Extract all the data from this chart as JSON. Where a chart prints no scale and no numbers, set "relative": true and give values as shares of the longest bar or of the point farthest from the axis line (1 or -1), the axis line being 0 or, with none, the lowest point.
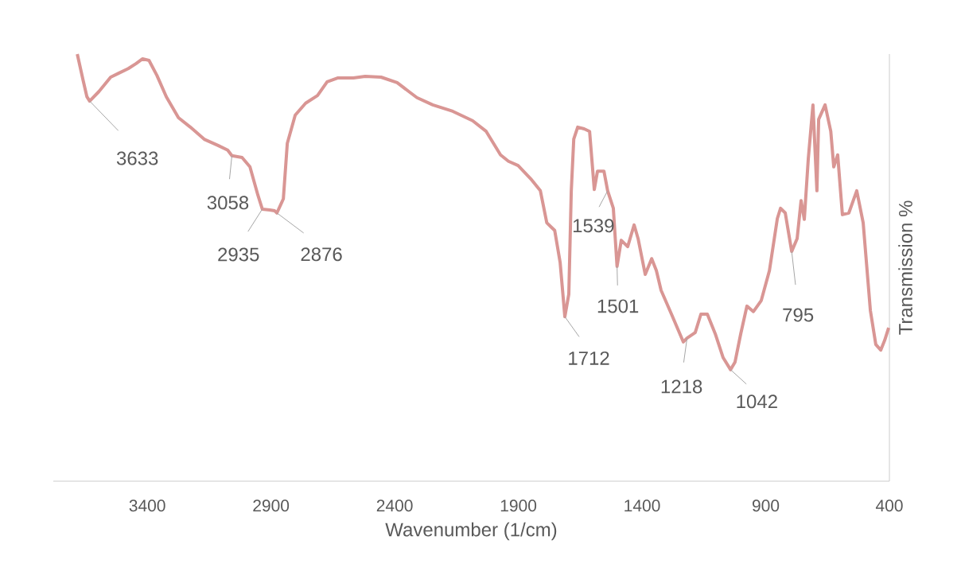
{
  "chart_data": {
    "type": "line",
    "relative": true,
    "xlabel": "Wavenumber (1/cm)",
    "ylabel": "Transmission %",
    "xlim": [
      3780,
      400
    ],
    "xticks": [
      3400,
      2900,
      2400,
      1900,
      1400,
      900,
      400
    ],
    "grid": false,
    "marker": "none",
    "line_style": "solid",
    "series": [
      {
        "color": "#d99694",
        "x": [
          3683,
          3660,
          3644,
          3633,
          3596,
          3548,
          3516,
          3477,
          3445,
          3419,
          3393,
          3361,
          3323,
          3274,
          3226,
          3168,
          3114,
          3075,
          3058,
          3017,
          2985,
          2953,
          2935,
          2905,
          2885,
          2876,
          2850,
          2834,
          2802,
          2760,
          2712,
          2673,
          2631,
          2567,
          2519,
          2455,
          2390,
          2342,
          2310,
          2246,
          2165,
          2085,
          2030,
          1972,
          1940,
          1901,
          1850,
          1811,
          1785,
          1769,
          1753,
          1731,
          1712,
          1696,
          1686,
          1676,
          1660,
          1634,
          1612,
          1593,
          1580,
          1554,
          1539,
          1516,
          1501,
          1484,
          1458,
          1432,
          1416,
          1387,
          1361,
          1342,
          1323,
          1281,
          1233,
          1218,
          1185,
          1162,
          1136,
          1104,
          1072,
          1042,
          1024,
          1001,
          976,
          950,
          918,
          885,
          853,
          840,
          821,
          795,
          773,
          757,
          744,
          728,
          709,
          693,
          686,
          660,
          637,
          625,
          609,
          590,
          564,
          532,
          506,
          477,
          455,
          435,
          419,
          403
        ],
        "values": [
          1.0,
          0.94,
          0.9,
          0.89,
          0.912,
          0.946,
          0.955,
          0.966,
          0.978,
          0.989,
          0.985,
          0.95,
          0.9,
          0.851,
          0.829,
          0.8,
          0.786,
          0.775,
          0.762,
          0.758,
          0.736,
          0.67,
          0.637,
          0.635,
          0.633,
          0.628,
          0.661,
          0.791,
          0.857,
          0.885,
          0.903,
          0.935,
          0.944,
          0.944,
          0.948,
          0.946,
          0.933,
          0.912,
          0.898,
          0.881,
          0.866,
          0.844,
          0.819,
          0.764,
          0.749,
          0.739,
          0.708,
          0.68,
          0.605,
          0.596,
          0.587,
          0.512,
          0.385,
          0.438,
          0.68,
          0.801,
          0.829,
          0.825,
          0.819,
          0.683,
          0.726,
          0.726,
          0.68,
          0.639,
          0.503,
          0.564,
          0.549,
          0.6,
          0.568,
          0.484,
          0.521,
          0.493,
          0.447,
          0.391,
          0.326,
          0.335,
          0.348,
          0.391,
          0.391,
          0.345,
          0.289,
          0.261,
          0.279,
          0.345,
          0.41,
          0.397,
          0.423,
          0.493,
          0.615,
          0.639,
          0.628,
          0.538,
          0.568,
          0.657,
          0.613,
          0.754,
          0.881,
          0.68,
          0.847,
          0.881,
          0.819,
          0.736,
          0.764,
          0.624,
          0.628,
          0.68,
          0.605,
          0.4,
          0.32,
          0.307,
          0.33,
          0.359
        ]
      }
    ],
    "annotations": [
      {
        "text": "3633",
        "x": 3633,
        "y": 0.89
      },
      {
        "text": "3058",
        "x": 3058,
        "y": 0.762
      },
      {
        "text": "2935",
        "x": 2935,
        "y": 0.637
      },
      {
        "text": "2876",
        "x": 2876,
        "y": 0.628
      },
      {
        "text": "1712",
        "x": 1712,
        "y": 0.385
      },
      {
        "text": "1539",
        "x": 1539,
        "y": 0.68
      },
      {
        "text": "1501",
        "x": 1501,
        "y": 0.503
      },
      {
        "text": "1218",
        "x": 1218,
        "y": 0.335
      },
      {
        "text": "1042",
        "x": 1042,
        "y": 0.261
      },
      {
        "text": "795",
        "x": 795,
        "y": 0.538
      }
    ]
  }
}
